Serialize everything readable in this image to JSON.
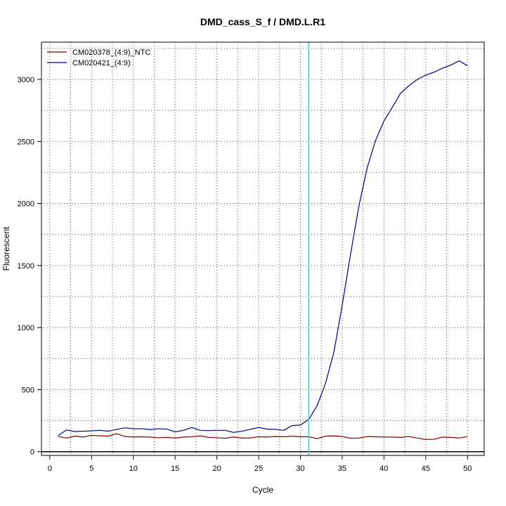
{
  "chart_data": {
    "type": "line",
    "title": "DMD_cass_S_f / DMD.L.R1",
    "xlabel": "Cycle",
    "ylabel": "Fluorescent",
    "xlim": [
      -1,
      52
    ],
    "ylim": [
      -30,
      3300
    ],
    "x_ticks": [
      0,
      5,
      10,
      15,
      20,
      25,
      30,
      35,
      40,
      45,
      50
    ],
    "y_ticks": [
      0,
      500,
      1000,
      1500,
      2000,
      2500,
      3000
    ],
    "grid": true,
    "legend": "top-left",
    "x": [
      1,
      2,
      3,
      4,
      5,
      6,
      7,
      8,
      9,
      10,
      11,
      12,
      13,
      14,
      15,
      16,
      17,
      18,
      19,
      20,
      21,
      22,
      23,
      24,
      25,
      26,
      27,
      28,
      29,
      30,
      31,
      32,
      33,
      34,
      35,
      36,
      37,
      38,
      39,
      40,
      41,
      42,
      43,
      44,
      45,
      46,
      47,
      48,
      49,
      50
    ],
    "series": [
      {
        "name": "CM020378_(4:9)_NTC",
        "color": "#8b0000",
        "values": [
          122,
          110,
          125,
          118,
          132,
          128,
          125,
          145,
          122,
          118,
          120,
          118,
          112,
          115,
          110,
          118,
          120,
          128,
          115,
          112,
          108,
          118,
          110,
          110,
          120,
          118,
          122,
          120,
          125,
          120,
          120,
          105,
          125,
          128,
          122,
          108,
          110,
          122,
          120,
          118,
          118,
          115,
          122,
          110,
          98,
          100,
          118,
          115,
          110,
          122
        ]
      },
      {
        "name": "CM020421_(4:9)",
        "color": "#000080",
        "values": [
          130,
          175,
          162,
          165,
          168,
          172,
          165,
          180,
          192,
          185,
          185,
          178,
          185,
          182,
          160,
          172,
          195,
          172,
          170,
          172,
          172,
          155,
          165,
          180,
          195,
          182,
          180,
          172,
          210,
          215,
          260,
          370,
          550,
          800,
          1180,
          1590,
          1980,
          2290,
          2510,
          2665,
          2775,
          2890,
          2950,
          3000,
          3035,
          3058,
          3090,
          3115,
          3150,
          3110
        ]
      }
    ],
    "annotations": {
      "threshold_line_color": "#000000",
      "threshold_value": 0,
      "ct_line_color": "#00e5e5",
      "ct_cycle": 31
    }
  }
}
